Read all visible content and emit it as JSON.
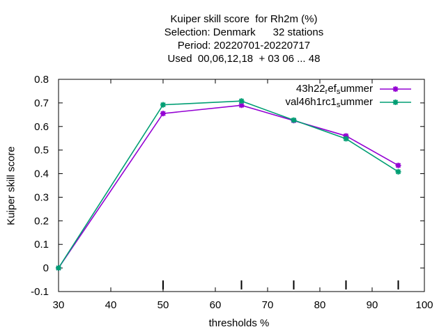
{
  "title_lines": [
    "Kuiper skill score  for Rh2m (%)",
    "Selection: Denmark      32 stations",
    "Period: 20220701-20220717",
    "Used  00,06,12,18  + 03 06 ... 48"
  ],
  "chart_data": {
    "type": "line",
    "xlabel": "thresholds %",
    "ylabel": "Kuiper skill score",
    "xlim": [
      30,
      100
    ],
    "ylim": [
      -0.1,
      0.8
    ],
    "xticks": [
      "30",
      "40",
      "50",
      "60",
      "70",
      "80",
      "90",
      "100"
    ],
    "yticks": [
      "-0.1",
      "0",
      "0.1",
      "0.2",
      "0.3",
      "0.4",
      "0.5",
      "0.6",
      "0.7",
      "0.8"
    ],
    "x": [
      30,
      50,
      65,
      75,
      85,
      95
    ],
    "series": [
      {
        "name_parts": [
          "43h22",
          "r",
          "ef",
          "s",
          "ummer"
        ],
        "color": "#9400d3",
        "values": [
          0.0,
          0.655,
          0.69,
          0.625,
          0.56,
          0.435
        ]
      },
      {
        "name_parts": [
          "val46h1rc1",
          "",
          "",
          "s",
          "ummer"
        ],
        "color": "#009e73",
        "values": [
          0.0,
          0.692,
          0.708,
          0.627,
          0.548,
          0.408
        ]
      }
    ],
    "legend_position": "top-right",
    "grid": false
  }
}
